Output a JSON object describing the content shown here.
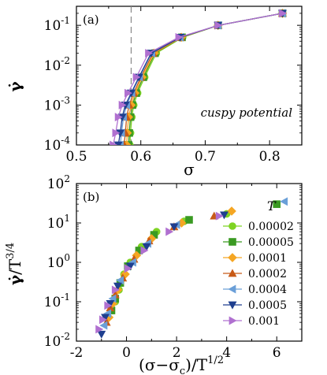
{
  "chart_data": [
    {
      "type": "line",
      "panel_label": "(a)",
      "xlabel": "σ",
      "ylabel_html": "γ̇",
      "xscale": "linear",
      "yscale": "log",
      "xlim": [
        0.5,
        0.85
      ],
      "ylim": [
        0.0001,
        0.3
      ],
      "xticks": [
        0.5,
        0.6,
        0.7,
        0.8
      ],
      "xtick_labels": [
        "0.5",
        "0.6",
        "0.7",
        "0.8"
      ],
      "yticks": [
        0.0001,
        0.001,
        0.01,
        0.1
      ],
      "ytick_labels": [
        {
          "base": "10",
          "exp": "-4"
        },
        {
          "base": "10",
          "exp": "-3"
        },
        {
          "base": "10",
          "exp": "-2"
        },
        {
          "base": "10",
          "exp": "-1"
        }
      ],
      "annotation": "cuspy potential",
      "vline": {
        "x": 0.585,
        "style": "dashed",
        "color": "#888888"
      },
      "series": [
        {
          "name": "0.00002",
          "color": "#7ed322",
          "marker": "circle",
          "x": [
            0.583,
            0.584,
            0.586,
            0.589,
            0.595,
            0.606,
            0.624,
            0.665,
            0.72,
            0.82
          ],
          "y": [
            0.0001,
            0.0002,
            0.0005,
            0.001,
            0.002,
            0.005,
            0.02,
            0.05,
            0.1,
            0.2
          ]
        },
        {
          "name": "0.00005",
          "color": "#3a9a22",
          "marker": "square",
          "x": [
            0.581,
            0.582,
            0.584,
            0.587,
            0.593,
            0.604,
            0.622,
            0.664,
            0.72,
            0.82
          ],
          "y": [
            0.0001,
            0.0002,
            0.0005,
            0.001,
            0.002,
            0.005,
            0.02,
            0.05,
            0.1,
            0.2
          ]
        },
        {
          "name": "0.0001",
          "color": "#f5a623",
          "marker": "diamond",
          "x": [
            0.578,
            0.579,
            0.581,
            0.585,
            0.591,
            0.602,
            0.621,
            0.663,
            0.72,
            0.82
          ],
          "y": [
            0.0001,
            0.0002,
            0.0005,
            0.001,
            0.002,
            0.005,
            0.02,
            0.05,
            0.1,
            0.2
          ]
        },
        {
          "name": "0.0002",
          "color": "#c85a17",
          "marker": "triangle-up",
          "x": [
            0.574,
            0.576,
            0.578,
            0.582,
            0.589,
            0.6,
            0.619,
            0.662,
            0.72,
            0.82
          ],
          "y": [
            0.0001,
            0.0002,
            0.0005,
            0.001,
            0.002,
            0.005,
            0.02,
            0.05,
            0.1,
            0.2
          ]
        },
        {
          "name": "0.0004",
          "color": "#6a9fd8",
          "marker": "triangle-left",
          "x": [
            0.568,
            0.57,
            0.573,
            0.578,
            0.586,
            0.598,
            0.617,
            0.661,
            0.72,
            0.82
          ],
          "y": [
            0.0001,
            0.0002,
            0.0005,
            0.001,
            0.002,
            0.005,
            0.02,
            0.05,
            0.1,
            0.2
          ]
        },
        {
          "name": "0.0005",
          "color": "#1f3f8f",
          "marker": "triangle-down",
          "x": [
            0.565,
            0.568,
            0.571,
            0.576,
            0.585,
            0.597,
            0.616,
            0.661,
            0.72,
            0.82
          ],
          "y": [
            0.0001,
            0.0002,
            0.0005,
            0.001,
            0.002,
            0.005,
            0.02,
            0.05,
            0.1,
            0.2
          ]
        },
        {
          "name": "0.001",
          "color": "#b070d0",
          "marker": "triangle-right",
          "x": [
            0.557,
            0.561,
            0.565,
            0.571,
            0.58,
            0.593,
            0.612,
            0.659,
            0.72,
            0.82
          ],
          "y": [
            0.0001,
            0.0002,
            0.0005,
            0.001,
            0.002,
            0.005,
            0.02,
            0.05,
            0.1,
            0.2
          ]
        }
      ]
    },
    {
      "type": "scatter",
      "panel_label": "(b)",
      "xlabel_html": "(σ−σc)/T1/2",
      "ylabel_html": "γ̇/T3/4",
      "xscale": "linear",
      "yscale": "log",
      "xlim": [
        -2,
        7
      ],
      "ylim": [
        0.01,
        100
      ],
      "xticks": [
        -2,
        0,
        2,
        4,
        6
      ],
      "xtick_labels": [
        "-2",
        "0",
        "2",
        "4",
        "6"
      ],
      "yticks": [
        0.01,
        0.1,
        1,
        10,
        100
      ],
      "ytick_labels": [
        {
          "base": "10",
          "exp": "-2"
        },
        {
          "base": "10",
          "exp": "-1"
        },
        {
          "base": "10",
          "exp": "0"
        },
        {
          "base": "10",
          "exp": "1"
        },
        {
          "base": "10",
          "exp": "2"
        }
      ],
      "legend_title": "T",
      "legend_position": "right",
      "series": [
        {
          "name": "0.00002",
          "color": "#7ed322",
          "marker": "circle",
          "x": [
            -0.45,
            -0.3,
            -0.1,
            0.15,
            0.6,
            1.2,
            2.3,
            4.0
          ],
          "y": [
            0.1,
            0.2,
            0.5,
            1.0,
            2.5,
            6.0,
            11.0,
            17.0
          ]
        },
        {
          "name": "0.00005",
          "color": "#3a9a22",
          "marker": "square",
          "x": [
            -0.6,
            -0.45,
            -0.25,
            0.05,
            0.5,
            1.1,
            2.5,
            6.0
          ],
          "y": [
            0.06,
            0.12,
            0.3,
            0.8,
            2.0,
            5.0,
            12.0,
            30.0
          ]
        },
        {
          "name": "0.0001",
          "color": "#f5a623",
          "marker": "diamond",
          "x": [
            -0.7,
            -0.55,
            -0.35,
            -0.05,
            0.4,
            1.0,
            2.2,
            4.2
          ],
          "y": [
            0.04,
            0.09,
            0.2,
            0.5,
            1.5,
            4.0,
            10.0,
            20.0
          ]
        },
        {
          "name": "0.0002",
          "color": "#c85a17",
          "marker": "triangle-up",
          "x": [
            -0.8,
            -0.65,
            -0.45,
            -0.15,
            0.3,
            0.9,
            1.9,
            3.5
          ],
          "y": [
            0.03,
            0.07,
            0.15,
            0.4,
            1.2,
            3.5,
            8.0,
            15.0
          ]
        },
        {
          "name": "0.0004",
          "color": "#6a9fd8",
          "marker": "triangle-left",
          "x": [
            -0.9,
            -0.75,
            -0.55,
            -0.25,
            0.25,
            0.85,
            2.0,
            6.3
          ],
          "y": [
            0.025,
            0.05,
            0.12,
            0.35,
            1.0,
            3.0,
            9.0,
            35.0
          ]
        },
        {
          "name": "0.0005",
          "color": "#1f3f8f",
          "marker": "triangle-down",
          "x": [
            -1.0,
            -0.85,
            -0.65,
            -0.35,
            0.15,
            0.8,
            1.9,
            3.9
          ],
          "y": [
            0.015,
            0.04,
            0.09,
            0.25,
            0.8,
            2.5,
            8.0,
            16.0
          ]
        },
        {
          "name": "0.001",
          "color": "#b070d0",
          "marker": "triangle-right",
          "x": [
            -1.1,
            -0.95,
            -0.75,
            -0.45,
            0.05,
            0.7,
            1.7,
            3.7
          ],
          "y": [
            0.02,
            0.035,
            0.08,
            0.2,
            0.7,
            2.0,
            6.0,
            15.0
          ]
        }
      ]
    }
  ]
}
